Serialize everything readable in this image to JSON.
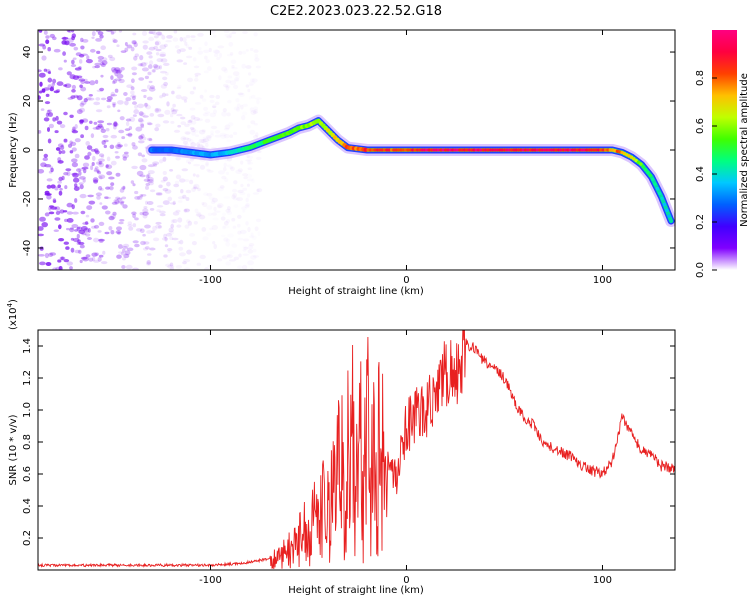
{
  "title": "C2E2.2023.023.22.52.G18",
  "colors": {
    "colormap": [
      "#ffffff",
      "#8000ff",
      "#4000ff",
      "#0060ff",
      "#00c8ff",
      "#00ff80",
      "#40ff00",
      "#c0ff00",
      "#ffc000",
      "#ff4000",
      "#ff0040",
      "#ff0080"
    ],
    "snr_line": "#e82020",
    "noise": "#7a10f0"
  },
  "chart_data": [
    {
      "type": "heatmap",
      "xlabel": "Height of straight line (km)",
      "ylabel": "Frequency (Hz)",
      "xlim": [
        -188,
        137
      ],
      "ylim": [
        -49,
        49
      ],
      "x_ticks": [
        -100,
        0,
        100
      ],
      "y_ticks": [
        -40,
        -20,
        0,
        20,
        40
      ],
      "colorbar": {
        "label": "Normalized spectral amplitude",
        "range": [
          0,
          1
        ],
        "ticks": [
          "0.0",
          "0.2",
          "0.4",
          "0.6",
          "0.8"
        ],
        "tick_values": [
          0.0,
          0.2,
          0.4,
          0.6,
          0.8
        ]
      },
      "ridge": {
        "x": [
          -130,
          -120,
          -110,
          -100,
          -90,
          -80,
          -70,
          -60,
          -55,
          -50,
          -45,
          -40,
          -35,
          -30,
          -20,
          -10,
          0,
          10,
          30,
          50,
          70,
          90,
          100,
          105,
          110,
          115,
          120,
          125,
          130,
          135
        ],
        "y": [
          0,
          0,
          -1,
          -2,
          -1,
          1,
          4,
          7,
          9,
          10,
          12,
          8,
          4,
          1,
          0,
          0,
          0,
          0,
          0,
          0,
          0,
          0,
          0,
          0,
          -1,
          -3,
          -6,
          -11,
          -19,
          -29
        ],
        "amplitude": [
          0.3,
          0.3,
          0.35,
          0.35,
          0.4,
          0.5,
          0.55,
          0.6,
          0.6,
          0.65,
          0.65,
          0.7,
          0.75,
          0.85,
          0.9,
          0.9,
          0.9,
          1.0,
          1.0,
          1.0,
          1.0,
          1.0,
          0.9,
          0.85,
          0.8,
          0.7,
          0.6,
          0.5,
          0.4,
          0.35
        ]
      },
      "noise_region_x": [
        -188,
        -75
      ]
    },
    {
      "type": "line",
      "xlabel": "Height of straight line (km)",
      "ylabel": "SNR (10 * v/v)",
      "y_exponent": "(x10",
      "y_exponent_power": "4",
      "xlim": [
        -188,
        137
      ],
      "ylim": [
        0,
        1.5
      ],
      "x_ticks": [
        -100,
        0,
        100
      ],
      "y_ticks": [
        0.2,
        0.4,
        0.6,
        0.8,
        1.0,
        1.2,
        1.4
      ],
      "series": [
        {
          "x": [
            -188,
            -160,
            -130,
            -100,
            -85,
            -75,
            -65,
            -60,
            -55,
            -50,
            -45,
            -40,
            -35,
            -30,
            -25,
            -20,
            -15,
            -10,
            -5,
            0,
            5,
            10,
            15,
            20,
            25,
            30,
            35,
            40,
            45,
            50,
            55,
            60,
            65,
            70,
            75,
            80,
            85,
            90,
            95,
            100,
            105,
            110,
            115,
            120,
            125,
            130,
            137
          ],
          "y": [
            0.03,
            0.03,
            0.03,
            0.03,
            0.04,
            0.06,
            0.08,
            0.12,
            0.18,
            0.26,
            0.33,
            0.4,
            0.55,
            0.7,
            0.8,
            0.75,
            0.7,
            0.62,
            0.58,
            0.9,
            0.95,
            1.0,
            1.15,
            1.2,
            1.25,
            1.42,
            1.38,
            1.3,
            1.25,
            1.2,
            1.05,
            0.95,
            0.9,
            0.8,
            0.76,
            0.73,
            0.7,
            0.65,
            0.62,
            0.6,
            0.68,
            0.95,
            0.85,
            0.75,
            0.72,
            0.65,
            0.63
          ]
        }
      ]
    }
  ]
}
